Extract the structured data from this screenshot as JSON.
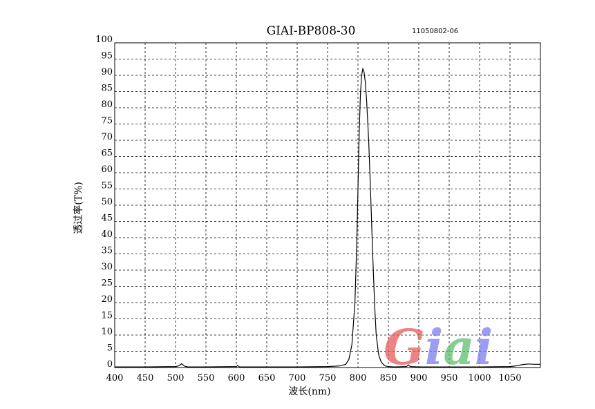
{
  "chart_data": {
    "type": "line",
    "title": "GIAI-BP808-30",
    "code": "11050802-06",
    "xlabel": "波长(nm)",
    "ylabel": "透过率(T%)",
    "xlim": [
      400,
      1100
    ],
    "ylim": [
      0,
      100
    ],
    "xticks": [
      400,
      450,
      500,
      550,
      600,
      650,
      700,
      750,
      800,
      850,
      900,
      950,
      1000,
      1050
    ],
    "yticks": [
      0,
      5,
      10,
      15,
      20,
      25,
      30,
      35,
      40,
      45,
      50,
      55,
      60,
      65,
      70,
      75,
      80,
      85,
      90,
      95,
      100
    ],
    "grid": true,
    "series": [
      {
        "x": [
          400,
          450,
          500,
          505,
          510,
          515,
          520,
          550,
          600,
          602,
          605,
          650,
          700,
          750,
          770,
          780,
          785,
          790,
          795,
          798,
          800,
          802,
          804,
          806,
          808,
          810,
          812,
          814,
          816,
          818,
          820,
          822,
          824,
          826,
          828,
          830,
          834,
          838,
          842,
          845,
          850,
          860,
          880,
          883,
          886,
          900,
          950,
          1000,
          1050,
          1060,
          1070,
          1080,
          1090,
          1100
        ],
        "y": [
          0.2,
          0.2,
          0.3,
          0.5,
          1.2,
          0.4,
          0.2,
          0.2,
          0.3,
          0.6,
          0.2,
          0.2,
          0.2,
          0.3,
          0.5,
          1.0,
          2.5,
          7,
          20,
          38,
          55,
          72,
          84,
          90,
          92,
          91,
          88,
          83,
          76,
          68,
          58,
          47,
          36,
          26,
          17,
          10,
          4,
          1.8,
          0.9,
          0.5,
          0.3,
          0.2,
          0.3,
          0.8,
          0.3,
          0.2,
          0.2,
          0.2,
          0.3,
          0.5,
          0.9,
          1.1,
          1.0,
          1.0
        ]
      }
    ]
  },
  "logo": {
    "text": "Giai",
    "colors": [
      "#e85b5b",
      "#7c7cf0",
      "#5cbf6e",
      "#7c7cf0"
    ]
  }
}
